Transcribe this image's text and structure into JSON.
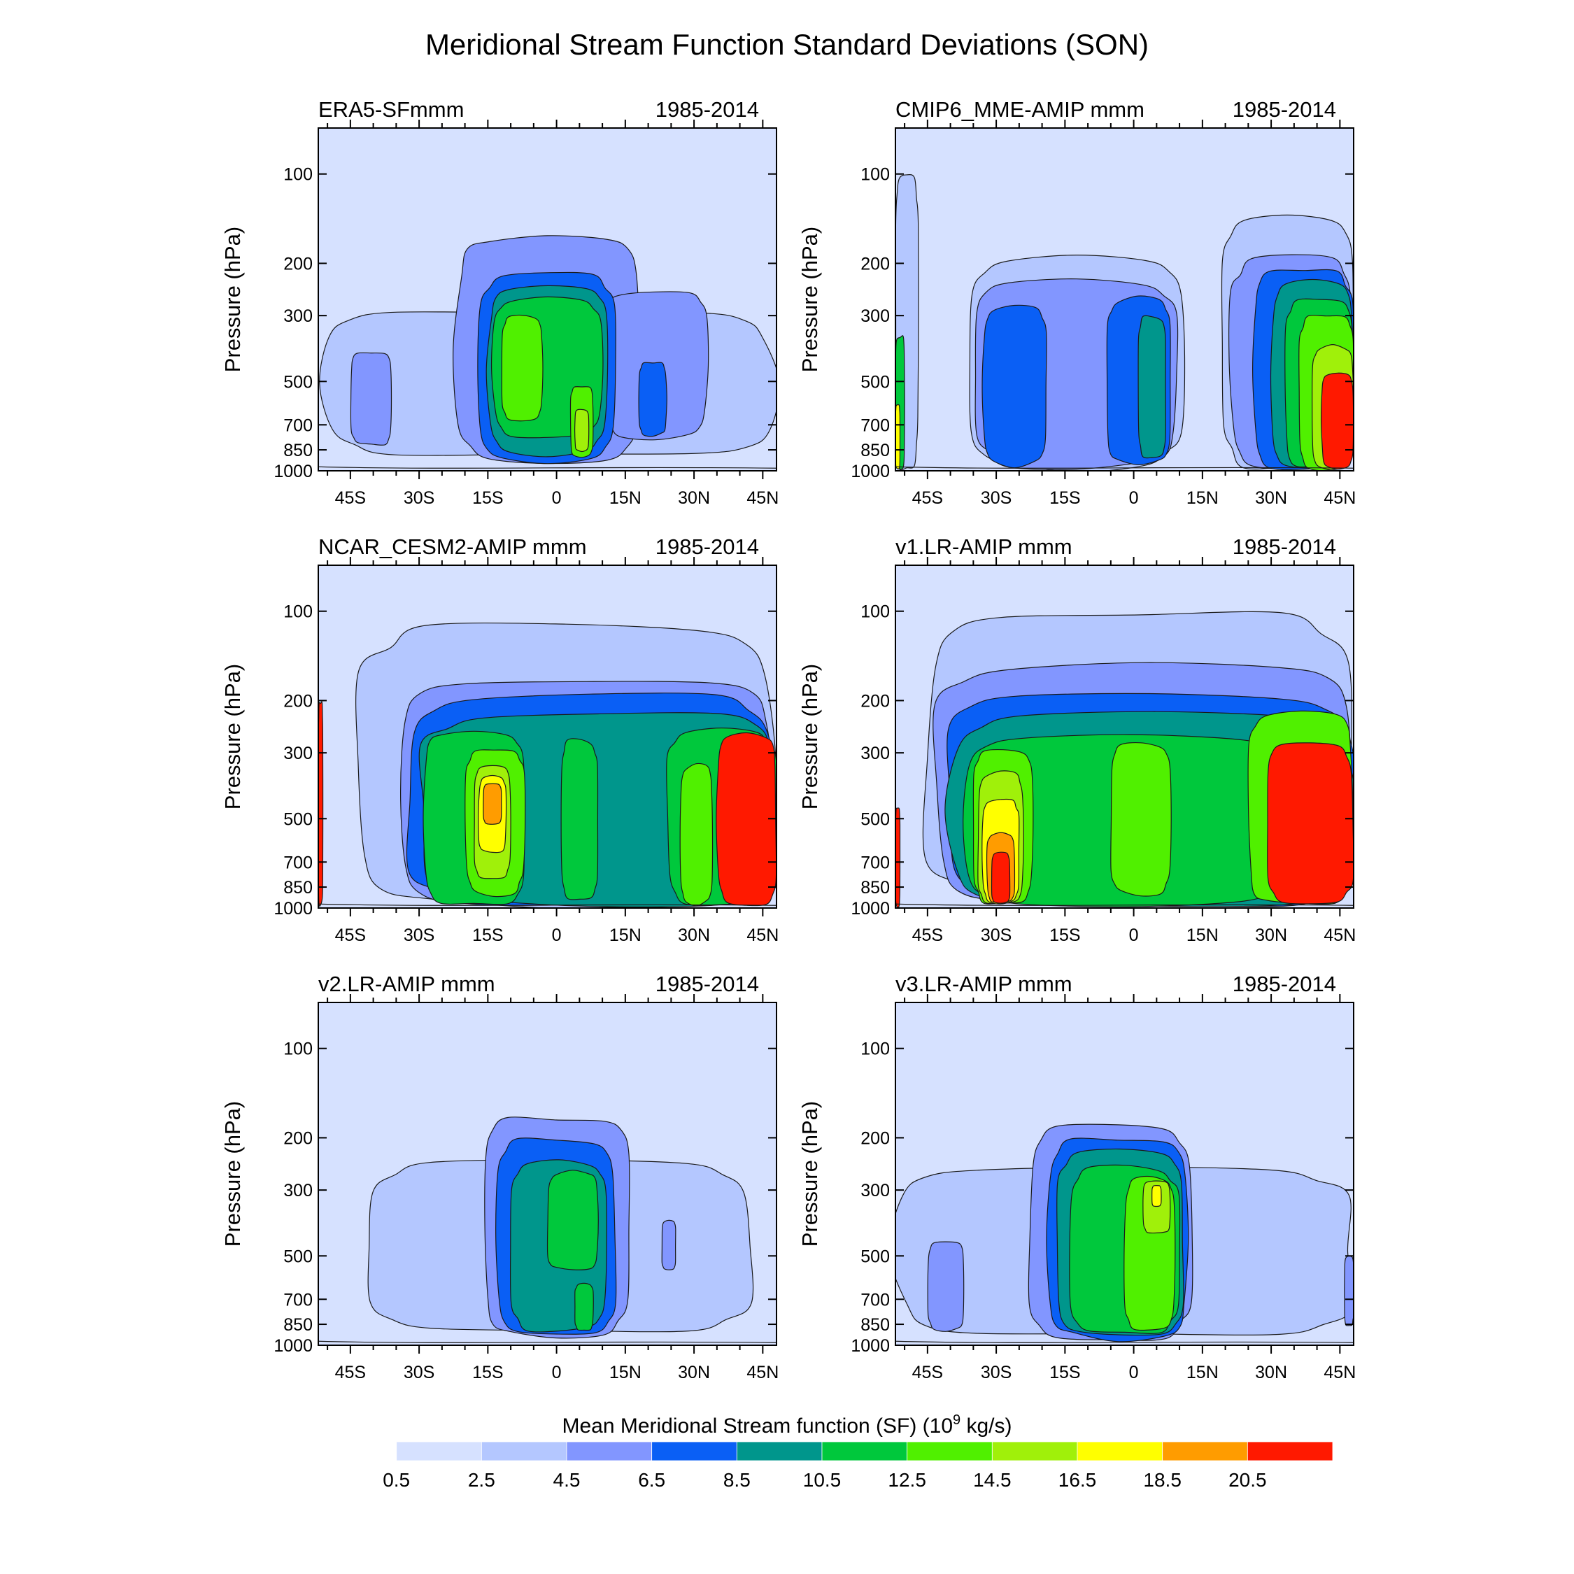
{
  "chart_data": {
    "type": "contour",
    "title": "Meridional Stream Function Standard Deviations (SON)",
    "colorbar": {
      "title": "Mean Meridional Stream function (SF) (10",
      "title_sup": "9",
      "title_tail": " kg/s)",
      "levels": [
        "0.5",
        "2.5",
        "4.5",
        "6.5",
        "8.5",
        "10.5",
        "12.5",
        "14.5",
        "16.5",
        "18.5",
        "20.5"
      ],
      "colors": [
        "#ffffff",
        "#d6e1ff",
        "#b4c7ff",
        "#8296ff",
        "#0a5ff5",
        "#00968c",
        "#00c83c",
        "#50f000",
        "#a0f00a",
        "#ffff00",
        "#ff9c00",
        "#ff1900"
      ]
    },
    "y_axis": {
      "label": "Pressure (hPa)",
      "ticks": [
        "100",
        "200",
        "300",
        "500",
        "700",
        "850",
        "1000"
      ],
      "tick_values": [
        100,
        200,
        300,
        500,
        700,
        850,
        1000
      ],
      "range": [
        70,
        1000
      ],
      "inverted": true
    },
    "x_axis": {
      "ticks": [
        "45S",
        "30S",
        "15S",
        "0",
        "15N",
        "30N",
        "45N"
      ],
      "tick_values": [
        -45,
        -30,
        -15,
        0,
        15,
        30,
        45
      ],
      "range": [
        -52,
        48
      ]
    },
    "panels": [
      {
        "name": "ERA5-SFmmm",
        "period": "1985-2014",
        "background_level": 1,
        "features": [
          {
            "level": 2,
            "lat": [
              -52,
              48
            ],
            "p": [
              290,
              890
            ]
          },
          {
            "level": 3,
            "lat": [
              -45,
              -36
            ],
            "p": [
              400,
              820
            ]
          },
          {
            "level": 3,
            "lat": [
              -22,
              18
            ],
            "p": [
              160,
              950
            ]
          },
          {
            "level": 3,
            "lat": [
              10,
              33
            ],
            "p": [
              250,
              780
            ]
          },
          {
            "level": 4,
            "lat": [
              -17,
              13
            ],
            "p": [
              215,
              930
            ]
          },
          {
            "level": 4,
            "lat": [
              18,
              24
            ],
            "p": [
              430,
              760
            ]
          },
          {
            "level": 5,
            "lat": [
              -15,
              11
            ],
            "p": [
              240,
              880
            ]
          },
          {
            "level": 6,
            "lat": [
              -14,
              10
            ],
            "p": [
              260,
              780
            ]
          },
          {
            "level": 7,
            "lat": [
              -12,
              -3
            ],
            "p": [
              300,
              680
            ]
          },
          {
            "level": 7,
            "lat": [
              3,
              8
            ],
            "p": [
              520,
              900
            ]
          },
          {
            "level": 8,
            "lat": [
              4,
              7
            ],
            "p": [
              620,
              860
            ]
          }
        ]
      },
      {
        "name": "CMIP6_MME-AMIP  mmm",
        "period": "1985-2014",
        "background_level": 1,
        "features": [
          {
            "level": 2,
            "lat": [
              -36,
              11
            ],
            "p": [
              190,
              990
            ]
          },
          {
            "level": 2,
            "lat": [
              19,
              48
            ],
            "p": [
              140,
              990
            ]
          },
          {
            "level": 2,
            "lat": [
              -52,
              -47
            ],
            "p": [
              100,
              990
            ]
          },
          {
            "level": 3,
            "lat": [
              -35,
              10
            ],
            "p": [
              230,
              980
            ]
          },
          {
            "level": 3,
            "lat": [
              21,
              48
            ],
            "p": [
              190,
              985
            ]
          },
          {
            "level": 4,
            "lat": [
              -33,
              -19
            ],
            "p": [
              280,
              960
            ]
          },
          {
            "level": 4,
            "lat": [
              -6,
              8
            ],
            "p": [
              260,
              950
            ]
          },
          {
            "level": 4,
            "lat": [
              26,
              48
            ],
            "p": [
              210,
              985
            ]
          },
          {
            "level": 5,
            "lat": [
              1,
              7
            ],
            "p": [
              300,
              900
            ]
          },
          {
            "level": 5,
            "lat": [
              30,
              48
            ],
            "p": [
              230,
              985
            ]
          },
          {
            "level": 6,
            "lat": [
              33,
              48
            ],
            "p": [
              260,
              985
            ]
          },
          {
            "level": 7,
            "lat": [
              36,
              48
            ],
            "p": [
              300,
              985
            ]
          },
          {
            "level": 8,
            "lat": [
              39,
              48
            ],
            "p": [
              380,
              985
            ]
          },
          {
            "level": 11,
            "lat": [
              41,
              48
            ],
            "p": [
              470,
              985
            ]
          },
          {
            "level": 6,
            "lat": [
              -52,
              -50
            ],
            "p": [
              350,
              990
            ]
          },
          {
            "level": 9,
            "lat": [
              -52,
              -51
            ],
            "p": [
              600,
              990
            ]
          }
        ]
      },
      {
        "name": "NCAR_CESM2-AMIP  mmm",
        "period": "1985-2014",
        "background_level": 1,
        "features": [
          {
            "level": 2,
            "lat": [
              -44,
              48
            ],
            "p": [
              110,
              990
            ]
          },
          {
            "level": 3,
            "lat": [
              -35,
              48
            ],
            "p": [
              170,
              990
            ]
          },
          {
            "level": 4,
            "lat": [
              -33,
              48
            ],
            "p": [
              190,
              990
            ]
          },
          {
            "level": 5,
            "lat": [
              -30,
              48
            ],
            "p": [
              220,
              985
            ]
          },
          {
            "level": 6,
            "lat": [
              -29,
              -7
            ],
            "p": [
              250,
              980
            ]
          },
          {
            "level": 6,
            "lat": [
              1,
              9
            ],
            "p": [
              270,
              950
            ]
          },
          {
            "level": 6,
            "lat": [
              24,
              48
            ],
            "p": [
              250,
              985
            ]
          },
          {
            "level": 7,
            "lat": [
              -20,
              -7
            ],
            "p": [
              290,
              900
            ]
          },
          {
            "level": 7,
            "lat": [
              27,
              34
            ],
            "p": [
              330,
              975
            ]
          },
          {
            "level": 8,
            "lat": [
              -18,
              -10
            ],
            "p": [
              330,
              800
            ]
          },
          {
            "level": 9,
            "lat": [
              -17,
              -11
            ],
            "p": [
              360,
              650
            ]
          },
          {
            "level": 10,
            "lat": [
              -16,
              -12
            ],
            "p": [
              380,
              520
            ]
          },
          {
            "level": 11,
            "lat": [
              35,
              48
            ],
            "p": [
              260,
              985
            ]
          },
          {
            "level": 11,
            "lat": [
              -52,
              -51
            ],
            "p": [
              200,
              990
            ]
          }
        ]
      },
      {
        "name": "v1.LR-AMIP  mmm",
        "period": "1985-2014",
        "background_level": 1,
        "features": [
          {
            "level": 2,
            "lat": [
              -46,
              48
            ],
            "p": [
              100,
              990
            ]
          },
          {
            "level": 3,
            "lat": [
              -44,
              48
            ],
            "p": [
              150,
              990
            ]
          },
          {
            "level": 4,
            "lat": [
              -41,
              48
            ],
            "p": [
              190,
              990
            ]
          },
          {
            "level": 5,
            "lat": [
              -40,
              48
            ],
            "p": [
              220,
              985
            ]
          },
          {
            "level": 6,
            "lat": [
              -37,
              35
            ],
            "p": [
              260,
              980
            ]
          },
          {
            "level": 7,
            "lat": [
              -35,
              -22
            ],
            "p": [
              290,
              975
            ]
          },
          {
            "level": 7,
            "lat": [
              -5,
              8
            ],
            "p": [
              280,
              900
            ]
          },
          {
            "level": 8,
            "lat": [
              -34,
              -24
            ],
            "p": [
              350,
              970
            ]
          },
          {
            "level": 9,
            "lat": [
              -33,
              -25
            ],
            "p": [
              430,
              960
            ]
          },
          {
            "level": 10,
            "lat": [
              -32,
              -26
            ],
            "p": [
              560,
              960
            ]
          },
          {
            "level": 11,
            "lat": [
              -31,
              -27
            ],
            "p": [
              650,
              960
            ]
          },
          {
            "level": 7,
            "lat": [
              25,
              48
            ],
            "p": [
              220,
              985
            ]
          },
          {
            "level": 11,
            "lat": [
              29,
              48
            ],
            "p": [
              280,
              985
            ]
          },
          {
            "level": 11,
            "lat": [
              -52,
              -51
            ],
            "p": [
              460,
              990
            ]
          }
        ]
      },
      {
        "name": "v2.LR-AMIP  mmm",
        "period": "1985-2014",
        "background_level": 1,
        "features": [
          {
            "level": 2,
            "lat": [
              -42,
              43
            ],
            "p": [
              240,
              900
            ]
          },
          {
            "level": 3,
            "lat": [
              -16,
              16
            ],
            "p": [
              170,
              950
            ]
          },
          {
            "level": 3,
            "lat": [
              23,
              26
            ],
            "p": [
              380,
              560
            ]
          },
          {
            "level": 4,
            "lat": [
              -13,
              13
            ],
            "p": [
              200,
              920
            ]
          },
          {
            "level": 5,
            "lat": [
              -10,
              11
            ],
            "p": [
              240,
              900
            ]
          },
          {
            "level": 6,
            "lat": [
              -2,
              9
            ],
            "p": [
              260,
              560
            ]
          },
          {
            "level": 6,
            "lat": [
              4,
              8
            ],
            "p": [
              620,
              890
            ]
          }
        ]
      },
      {
        "name": "v3.LR-AMIP  mmm",
        "period": "1985-2014",
        "background_level": 1,
        "features": [
          {
            "level": 2,
            "lat": [
              -52,
              48
            ],
            "p": [
              250,
              930
            ]
          },
          {
            "level": 3,
            "lat": [
              -23,
              13
            ],
            "p": [
              180,
              960
            ]
          },
          {
            "level": 3,
            "lat": [
              -45,
              -37
            ],
            "p": [
              450,
              890
            ]
          },
          {
            "level": 3,
            "lat": [
              46,
              48
            ],
            "p": [
              500,
              860
            ]
          },
          {
            "level": 4,
            "lat": [
              -19,
              12
            ],
            "p": [
              200,
              950
            ]
          },
          {
            "level": 5,
            "lat": [
              -17,
              11
            ],
            "p": [
              220,
              930
            ]
          },
          {
            "level": 6,
            "lat": [
              -14,
              10
            ],
            "p": [
              250,
              920
            ]
          },
          {
            "level": 7,
            "lat": [
              -2,
              9
            ],
            "p": [
              270,
              900
            ]
          },
          {
            "level": 8,
            "lat": [
              2,
              8
            ],
            "p": [
              280,
              420
            ]
          },
          {
            "level": 9,
            "lat": [
              4,
              6
            ],
            "p": [
              290,
              340
            ]
          }
        ]
      }
    ]
  }
}
